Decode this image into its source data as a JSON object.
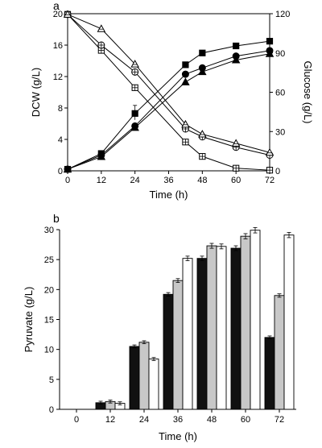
{
  "chart_data": [
    {
      "type": "line",
      "panel_label": "a",
      "xlabel": "Time (h)",
      "ylabel": "DCW (g/L)",
      "ylabel_right": "Glucose (g/L)",
      "xlim": [
        0,
        72
      ],
      "ylim": [
        0,
        20
      ],
      "ylim_right": [
        0,
        120
      ],
      "xticks": [
        0,
        12,
        24,
        36,
        48,
        60,
        72
      ],
      "yticks": [
        0,
        4,
        8,
        12,
        16,
        20
      ],
      "yticks_right": [
        0,
        30,
        60,
        90,
        120
      ],
      "x": [
        0,
        12,
        24,
        42,
        48,
        60,
        72
      ],
      "series": [
        {
          "axis": "left",
          "marker": "square-filled",
          "values": [
            0.2,
            2.2,
            7.3,
            13.5,
            15.0,
            15.9,
            16.5
          ]
        },
        {
          "axis": "left",
          "marker": "circle-filled",
          "values": [
            0.2,
            2.0,
            5.7,
            12.3,
            13.1,
            14.6,
            15.3
          ]
        },
        {
          "axis": "left",
          "marker": "triangle-filled",
          "values": [
            0.2,
            1.8,
            5.5,
            11.3,
            12.6,
            14.1,
            14.9
          ]
        },
        {
          "axis": "right",
          "marker": "square-open",
          "values": [
            119.5,
            92.0,
            63.5,
            22.0,
            11.0,
            2.0,
            0.5
          ]
        },
        {
          "axis": "right",
          "marker": "circle-open",
          "values": [
            119.5,
            96.0,
            75.5,
            32.0,
            26.0,
            18.0,
            12.0
          ]
        },
        {
          "axis": "right",
          "marker": "triangle-open",
          "values": [
            119.5,
            108.5,
            81.5,
            35.5,
            28.0,
            21.0,
            14.0
          ]
        }
      ]
    },
    {
      "type": "bar",
      "panel_label": "b",
      "xlabel": "Time (h)",
      "ylabel": "Pyruvate (g/L)",
      "ylim": [
        0,
        30
      ],
      "yticks": [
        0,
        5,
        10,
        15,
        20,
        25,
        30
      ],
      "categories": [
        "0",
        "12",
        "24",
        "36",
        "48",
        "60",
        "72"
      ],
      "series": [
        {
          "color": "#111111",
          "values": [
            0,
            1.1,
            10.5,
            19.2,
            25.2,
            26.9,
            12.0
          ]
        },
        {
          "color": "#c8c8c8",
          "values": [
            0,
            1.3,
            11.2,
            21.5,
            27.3,
            28.9,
            19.0
          ]
        },
        {
          "color": "#ffffff",
          "values": [
            0,
            1.0,
            8.4,
            25.2,
            27.2,
            29.9,
            29.1
          ]
        }
      ]
    }
  ]
}
